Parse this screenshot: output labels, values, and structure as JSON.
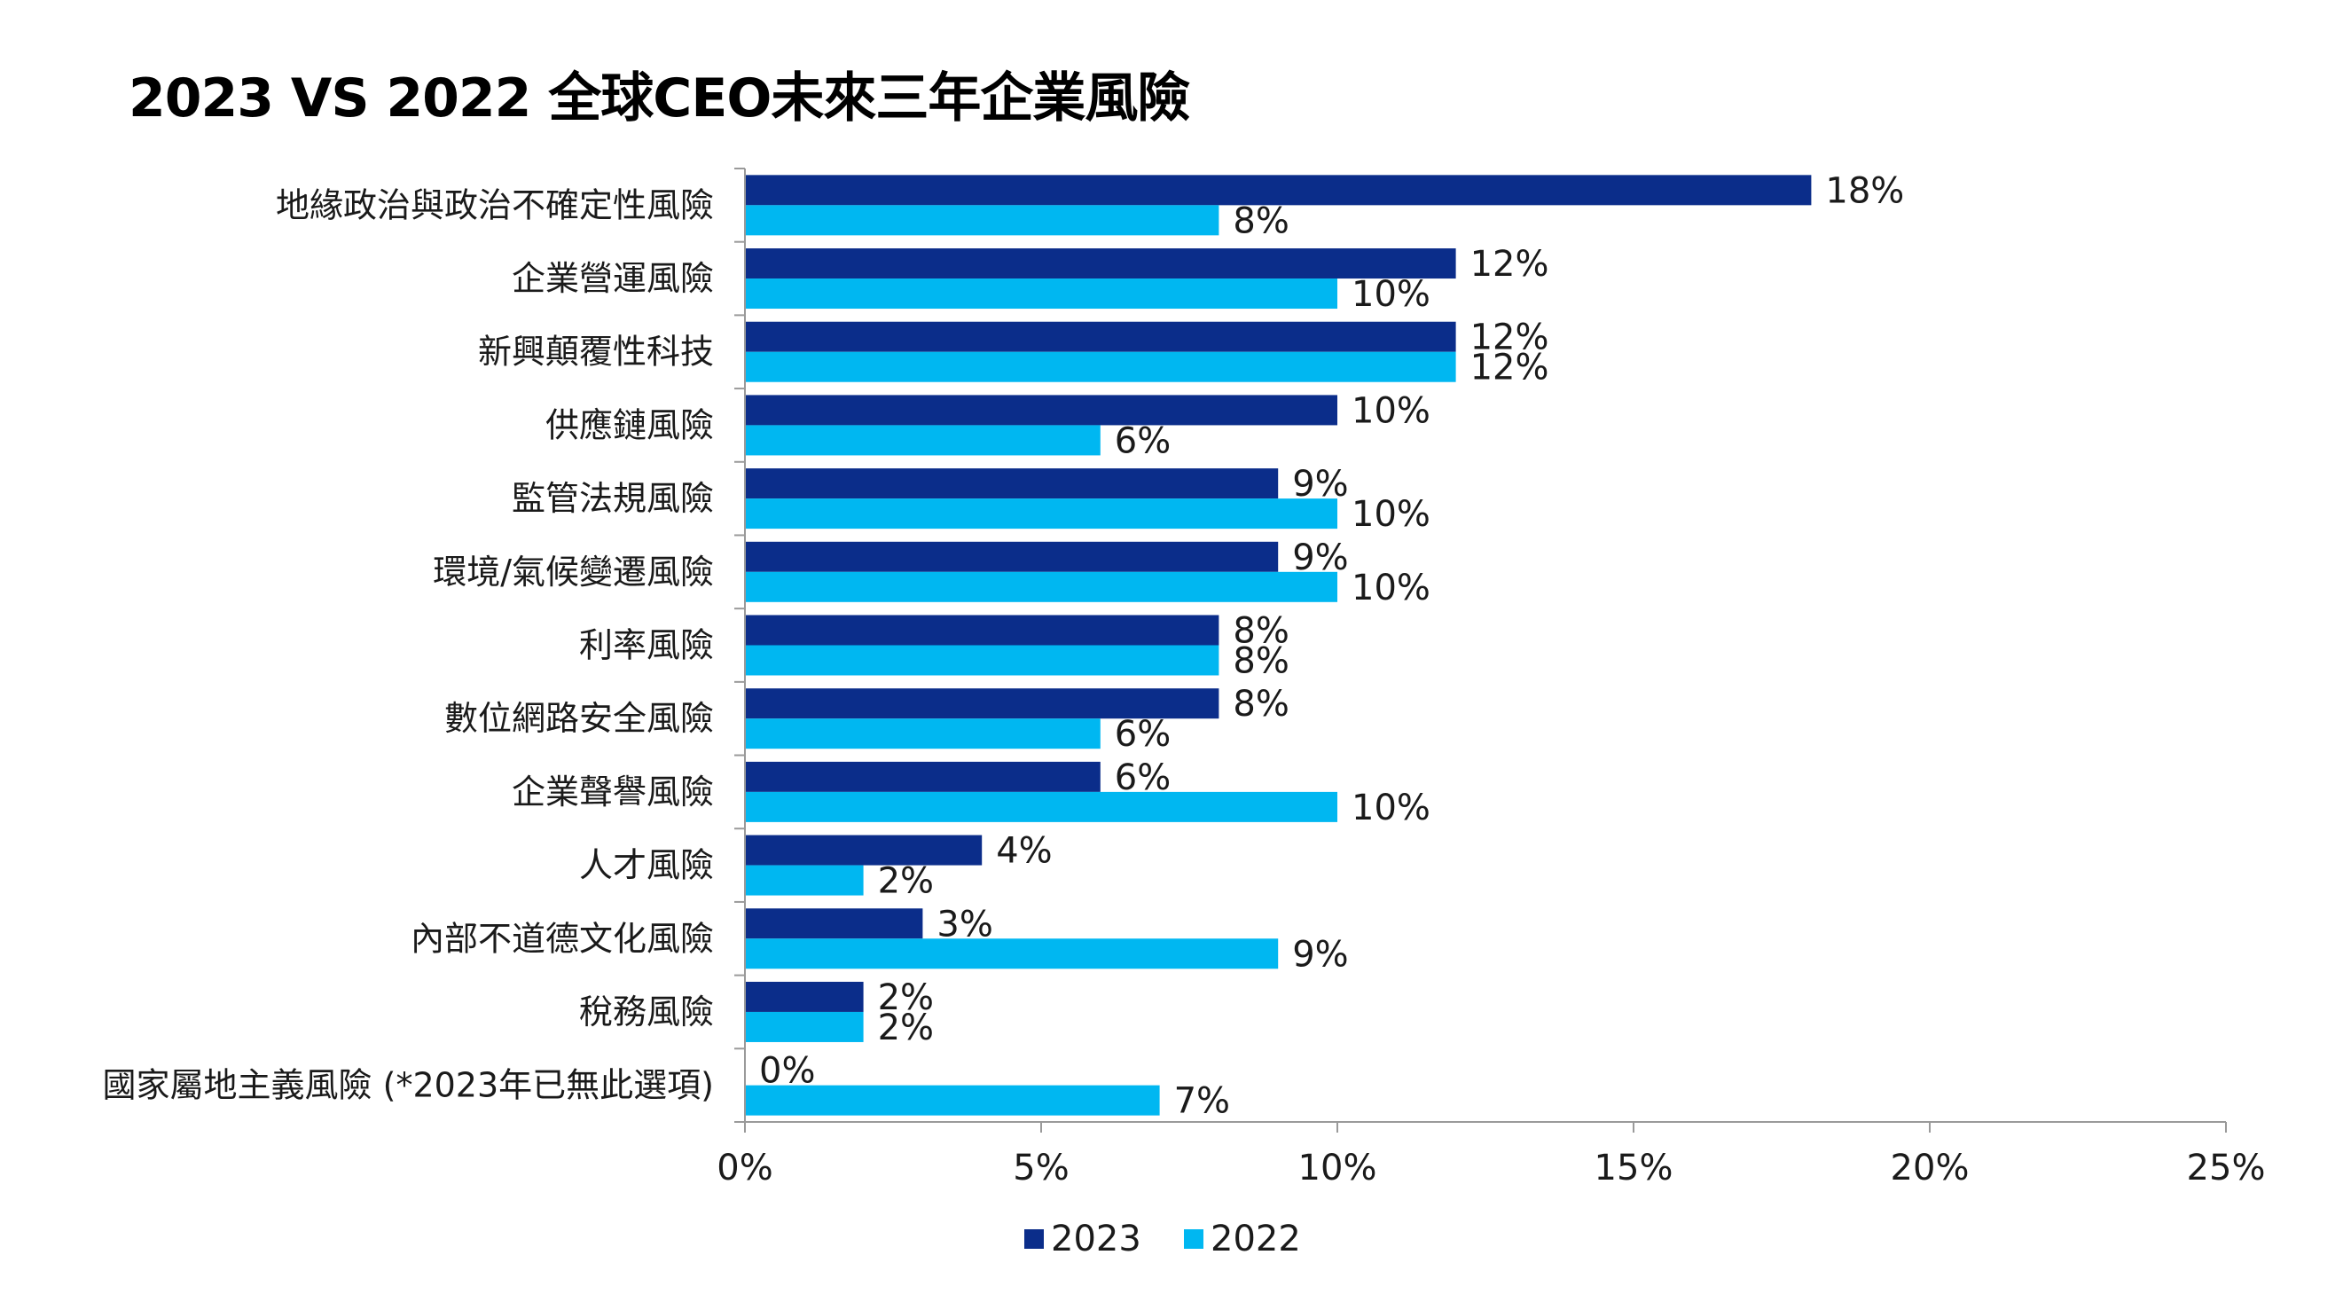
{
  "chart_data": {
    "type": "bar",
    "orientation": "horizontal",
    "title": "2023 VS 2022 全球CEO未來三年企業風險",
    "categories": [
      "地緣政治與政治不確定性風險",
      "企業營運風險",
      "新興顛覆性科技",
      "供應鏈風險",
      "監管法規風險",
      "環境/氣候變遷風險",
      "利率風險",
      "數位網路安全風險",
      "企業聲譽風險",
      "人才風險",
      "內部不道德文化風險",
      "稅務風險",
      "國家屬地主義風險 (*2023年已無此選項)"
    ],
    "series": [
      {
        "name": "2023",
        "color": "#0b2d8a",
        "values": [
          18,
          12,
          12,
          10,
          9,
          9,
          8,
          8,
          6,
          4,
          3,
          2,
          0
        ]
      },
      {
        "name": "2022",
        "color": "#00b7f1",
        "values": [
          8,
          10,
          12,
          6,
          10,
          10,
          8,
          6,
          10,
          2,
          9,
          2,
          7
        ]
      }
    ],
    "value_suffix": "%",
    "xlim": [
      0,
      25
    ],
    "xticks": [
      0,
      5,
      10,
      15,
      20,
      25
    ],
    "xtick_labels": [
      "0%",
      "5%",
      "10%",
      "15%",
      "20%",
      "25%"
    ],
    "xlabel": "",
    "ylabel": "",
    "legend": "bottom-center",
    "grid": false
  }
}
